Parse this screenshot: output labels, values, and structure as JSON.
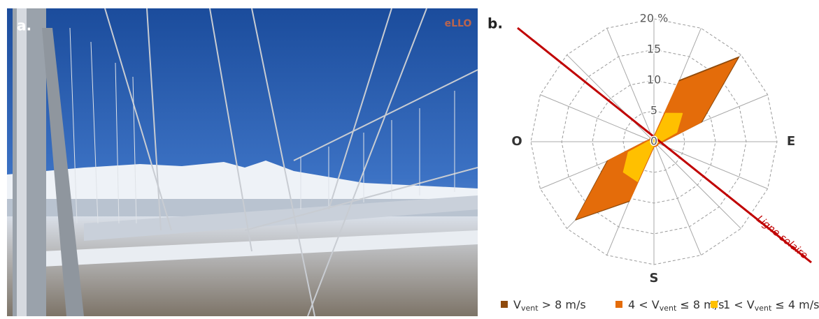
{
  "panel_a": {
    "label": "a.",
    "logo": "eLLO"
  },
  "chart_data": {
    "type": "radar",
    "panel_label": "b.",
    "categories": [
      null,
      null,
      null,
      null,
      "E",
      null,
      null,
      null,
      "S",
      null,
      null,
      null,
      "O",
      null,
      null,
      null
    ],
    "stacked": true,
    "series": [
      {
        "name": "Vvent > 8 m/s",
        "color": "#8e4a0c",
        "values": [
          0,
          0.3,
          0.5,
          0.2,
          0,
          0,
          0,
          0,
          0,
          0.2,
          0.3,
          0.2,
          0,
          0,
          0,
          0
        ]
      },
      {
        "name": "4 < Vvent ≤ 8 m/s",
        "color": "#e46c0a",
        "values": [
          0.3,
          5.5,
          12.5,
          4.2,
          0.5,
          0.3,
          0.3,
          0.3,
          0.3,
          3.3,
          10.7,
          3.5,
          0.5,
          0.3,
          0.3,
          0.3
        ]
      },
      {
        "name": "1 < Vvent ≤ 4 m/s",
        "color": "#ffc000",
        "values": [
          0.5,
          5,
          6.5,
          4,
          1,
          0.5,
          0.5,
          0.5,
          0.5,
          7,
          7,
          4.5,
          1,
          0.5,
          0.5,
          0.5
        ]
      }
    ],
    "ylim": [
      0,
      20
    ],
    "yticks": [
      0,
      5,
      10,
      15,
      {
        "value": 20,
        "label": "20 %"
      }
    ],
    "grid": true,
    "annotation": "Ligne solaire"
  }
}
